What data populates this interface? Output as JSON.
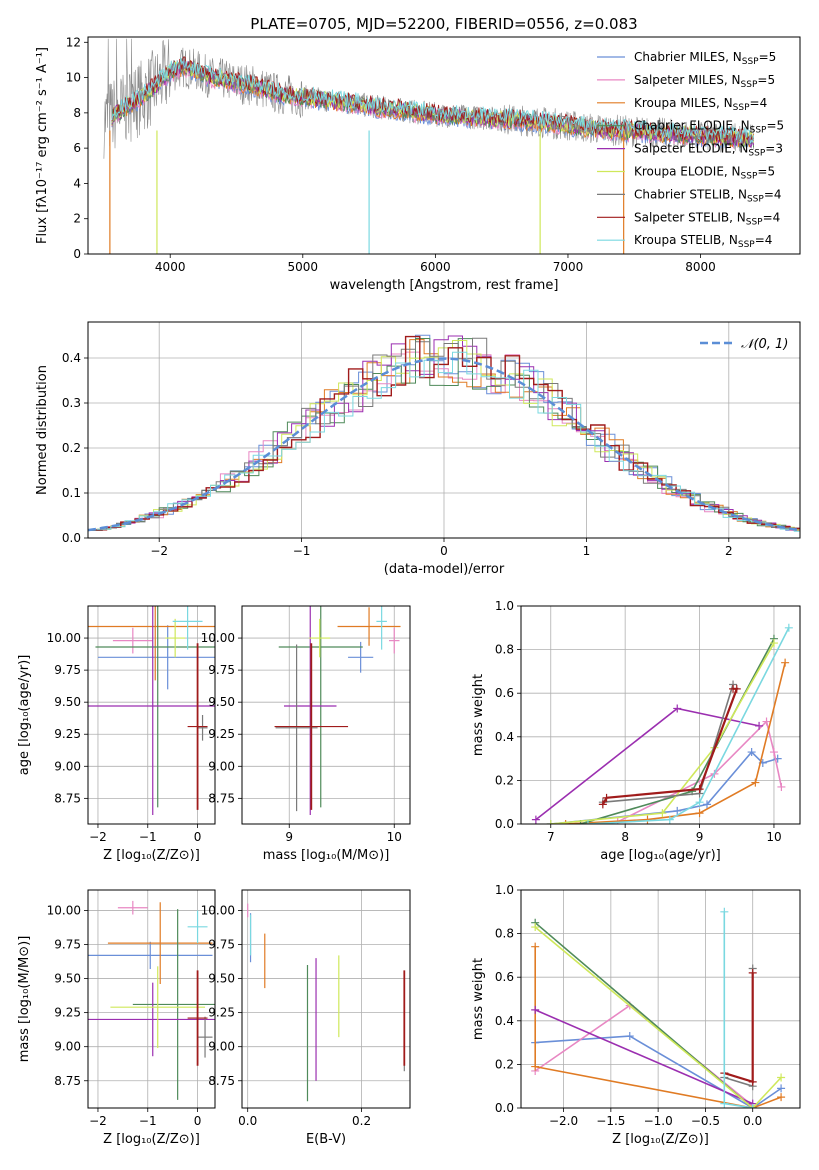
{
  "colors": {
    "chabrier_miles": "#6a8fd8",
    "salpeter_miles": "#e887c3",
    "kroupa_miles": "#e07b24",
    "chabrier_elodie": "#4f8a5a",
    "salpeter_elodie": "#9b2fb0",
    "kroupa_elodie": "#cfe85a",
    "chabrier_stelib": "#7a7a7a",
    "salpeter_stelib": "#a01b1b",
    "kroupa_stelib": "#7ad8e0",
    "gaussian": "#5b8ed6",
    "data": "#8a8a8a"
  },
  "chart_data": [
    {
      "id": "spectrum",
      "type": "line",
      "title": "PLATE=0705, MJD=52200, FIBERID=0556, z=0.083",
      "xlabel": "wavelength [Angstrom, rest frame]",
      "ylabel": "Flux [fλ10⁻¹⁷ erg cm⁻² s⁻¹ A⁻¹]",
      "xlim": [
        3380,
        8750
      ],
      "ylim": [
        0,
        12.3
      ],
      "xticks": [
        4000,
        5000,
        6000,
        7000,
        8000
      ],
      "yticks": [
        0,
        2,
        4,
        6,
        8,
        10,
        12
      ],
      "grid": false,
      "legend_position": "right",
      "continuum_nodes": {
        "x": [
          3500,
          3600,
          3700,
          3800,
          3900,
          4000,
          4100,
          4200,
          4300,
          4400,
          4500,
          4600,
          4700,
          4800,
          4900,
          5000,
          5200,
          5400,
          5600,
          5800,
          6000,
          6200,
          6400,
          6600,
          6800,
          7000,
          7200,
          7400,
          7600,
          7800,
          8000,
          8200,
          8400
        ],
        "y": [
          7.6,
          8.0,
          8.5,
          9.0,
          9.6,
          10.3,
          10.6,
          10.4,
          10.0,
          9.9,
          9.7,
          9.6,
          9.4,
          9.1,
          9.0,
          8.9,
          8.7,
          8.5,
          8.3,
          8.1,
          7.9,
          7.8,
          7.7,
          7.6,
          7.5,
          7.3,
          7.1,
          7.0,
          6.9,
          6.8,
          6.7,
          6.6,
          6.5
        ]
      },
      "legend": [
        {
          "label": "Chabrier MILES, N_SSP=5",
          "base": "Chabrier MILES, N",
          "sub": "SSP",
          "tail": "=5",
          "color_key": "chabrier_miles"
        },
        {
          "label": "Salpeter MILES, N_SSP=5",
          "base": "Salpeter MILES, N",
          "sub": "SSP",
          "tail": "=5",
          "color_key": "salpeter_miles"
        },
        {
          "label": "Kroupa MILES, N_SSP=4",
          "base": "Kroupa MILES, N",
          "sub": "SSP",
          "tail": "=4",
          "color_key": "kroupa_miles"
        },
        {
          "label": "Chabrier ELODIE, N_SSP=5",
          "base": "Chabrier ELODIE, N",
          "sub": "SSP",
          "tail": "=5",
          "color_key": "chabrier_elodie"
        },
        {
          "label": "Salpeter ELODIE, N_SSP=3",
          "base": "Salpeter ELODIE, N",
          "sub": "SSP",
          "tail": "=3",
          "color_key": "salpeter_elodie"
        },
        {
          "label": "Kroupa ELODIE, N_SSP=5",
          "base": "Kroupa ELODIE, N",
          "sub": "SSP",
          "tail": "=5",
          "color_key": "kroupa_elodie"
        },
        {
          "label": "Chabrier STELIB, N_SSP=4",
          "base": "Chabrier STELIB, N",
          "sub": "SSP",
          "tail": "=4",
          "color_key": "chabrier_stelib"
        },
        {
          "label": "Salpeter STELIB, N_SSP=4",
          "base": "Salpeter STELIB, N",
          "sub": "SSP",
          "tail": "=4",
          "color_key": "salpeter_stelib"
        },
        {
          "label": "Kroupa STELIB, N_SSP=4",
          "base": "Kroupa STELIB, N",
          "sub": "SSP",
          "tail": "=4",
          "color_key": "kroupa_stelib"
        }
      ]
    },
    {
      "id": "residuals",
      "type": "histogram",
      "xlabel": "(data-model)/error",
      "ylabel": "Normed distribution",
      "xlim": [
        -2.5,
        2.5
      ],
      "ylim": [
        0,
        0.48
      ],
      "xticks": [
        -2,
        -1,
        0,
        1,
        2
      ],
      "yticks": [
        0.0,
        0.1,
        0.2,
        0.3,
        0.4
      ],
      "grid": true,
      "legend_position": "top-right",
      "gaussian_label": "𝒩(0, 1)",
      "bin_width": 0.1
    },
    {
      "id": "age_vs_Z",
      "type": "errorbar",
      "xlabel": "Z [log₁₀(Z/Z⊙)]",
      "ylabel": "age  [log₁₀(age/yr)]",
      "xlim": [
        -2.2,
        0.35
      ],
      "ylim": [
        8.55,
        10.25
      ],
      "xticks": [
        -2,
        -1,
        0
      ],
      "yticks": [
        8.75,
        9.0,
        9.25,
        9.5,
        9.75,
        10.0
      ],
      "grid": true,
      "points": [
        {
          "color_key": "chabrier_miles",
          "x": -0.6,
          "xerr": 1.4,
          "y": 9.85,
          "yerr": 0.25
        },
        {
          "color_key": "salpeter_miles",
          "x": -1.3,
          "xerr": 0.4,
          "y": 9.98,
          "yerr": 0.1
        },
        {
          "color_key": "kroupa_miles",
          "x": -0.85,
          "xerr": 1.35,
          "y": 10.09,
          "yerr": 0.42
        },
        {
          "color_key": "chabrier_elodie",
          "x": -0.8,
          "xerr": 1.25,
          "y": 9.93,
          "yerr": 1.25
        },
        {
          "color_key": "salpeter_elodie",
          "x": -0.9,
          "xerr": 1.3,
          "y": 9.47,
          "yerr": 0.85
        },
        {
          "color_key": "kroupa_elodie",
          "x": -0.45,
          "xerr": 0.2,
          "y": 10.0,
          "yerr": 0.15
        },
        {
          "color_key": "chabrier_stelib",
          "x": 0.1,
          "xerr": 0.1,
          "y": 9.3,
          "yerr": 0.1
        },
        {
          "color_key": "salpeter_stelib",
          "x": 0.0,
          "xerr": 0.2,
          "y": 9.31,
          "yerr": 0.65
        },
        {
          "color_key": "kroupa_stelib",
          "x": -0.2,
          "xerr": 0.3,
          "y": 10.13,
          "yerr": 0.22
        }
      ]
    },
    {
      "id": "age_vs_mass",
      "type": "errorbar",
      "xlabel": "mass [log₁₀(M/M⊙)]",
      "ylabel": "",
      "xlim": [
        8.55,
        10.15
      ],
      "ylim": [
        8.55,
        10.25
      ],
      "xticks": [
        9,
        10
      ],
      "yticks": [
        8.75,
        9.0,
        9.25,
        9.5,
        9.75,
        10.0
      ],
      "grid": true,
      "points": [
        {
          "color_key": "chabrier_miles",
          "x": 9.68,
          "xerr": 0.12,
          "y": 9.85,
          "yerr": 0.12
        },
        {
          "color_key": "salpeter_miles",
          "x": 10.0,
          "xerr": 0.05,
          "y": 9.98,
          "yerr": 0.1
        },
        {
          "color_key": "kroupa_miles",
          "x": 9.76,
          "xerr": 0.3,
          "y": 10.09,
          "yerr": 0.15
        },
        {
          "color_key": "chabrier_elodie",
          "x": 9.3,
          "xerr": 0.4,
          "y": 9.93,
          "yerr": 1.25
        },
        {
          "color_key": "salpeter_elodie",
          "x": 9.2,
          "xerr": 0.25,
          "y": 9.47,
          "yerr": 0.85
        },
        {
          "color_key": "kroupa_elodie",
          "x": 9.29,
          "xerr": 0.1,
          "y": 10.0,
          "yerr": 0.15
        },
        {
          "color_key": "chabrier_stelib",
          "x": 9.07,
          "xerr": 0.2,
          "y": 9.3,
          "yerr": 0.65
        },
        {
          "color_key": "salpeter_stelib",
          "x": 9.21,
          "xerr": 0.35,
          "y": 9.31,
          "yerr": 0.65
        },
        {
          "color_key": "kroupa_stelib",
          "x": 9.88,
          "xerr": 0.05,
          "y": 10.13,
          "yerr": 0.22
        }
      ]
    },
    {
      "id": "massweight_vs_age",
      "type": "line",
      "xlabel": "age  [log₁₀(age/yr)]",
      "ylabel": "mass weight",
      "xlim": [
        6.6,
        10.35
      ],
      "ylim": [
        0,
        1
      ],
      "xticks": [
        7,
        8,
        9,
        10
      ],
      "yticks": [
        0.0,
        0.2,
        0.4,
        0.6,
        0.8,
        1.0
      ],
      "grid": true,
      "series": [
        {
          "color_key": "chabrier_miles",
          "x": [
            7.0,
            8.7,
            9.1,
            9.7,
            9.85,
            10.05
          ],
          "y": [
            0.0,
            0.06,
            0.09,
            0.33,
            0.28,
            0.3
          ]
        },
        {
          "color_key": "salpeter_miles",
          "x": [
            7.9,
            9.2,
            9.9,
            10.0,
            10.1
          ],
          "y": [
            0.01,
            0.23,
            0.47,
            0.33,
            0.17
          ]
        },
        {
          "color_key": "kroupa_miles",
          "x": [
            7.2,
            8.3,
            9.0,
            9.75,
            10.15
          ],
          "y": [
            0.0,
            0.02,
            0.05,
            0.19,
            0.74
          ]
        },
        {
          "color_key": "chabrier_elodie",
          "x": [
            7.4,
            8.9,
            10.0
          ],
          "y": [
            0.0,
            0.15,
            0.85
          ]
        },
        {
          "color_key": "salpeter_elodie",
          "x": [
            6.8,
            8.7,
            9.8
          ],
          "y": [
            0.02,
            0.53,
            0.45
          ]
        },
        {
          "color_key": "kroupa_elodie",
          "x": [
            7.0,
            8.5,
            9.2,
            10.0
          ],
          "y": [
            0.0,
            0.05,
            0.35,
            0.83
          ]
        },
        {
          "color_key": "chabrier_stelib",
          "x": [
            7.7,
            9.0,
            9.45
          ],
          "y": [
            0.1,
            0.14,
            0.64
          ]
        },
        {
          "color_key": "salpeter_stelib",
          "x": [
            7.7,
            7.75,
            9.0,
            9.5,
            9.45
          ],
          "y": [
            0.09,
            0.12,
            0.16,
            0.62,
            0.62
          ]
        },
        {
          "color_key": "kroupa_stelib",
          "x": [
            7.5,
            8.6,
            9.0,
            10.2
          ],
          "y": [
            0.0,
            0.02,
            0.1,
            0.9
          ]
        }
      ]
    },
    {
      "id": "mass_vs_Z",
      "type": "errorbar",
      "xlabel": "Z [log₁₀(Z/Z⊙)]",
      "ylabel": "mass [log₁₀(M/M⊙)]",
      "xlim": [
        -2.2,
        0.35
      ],
      "ylim": [
        8.55,
        10.15
      ],
      "xticks": [
        -2,
        -1,
        0
      ],
      "yticks": [
        8.75,
        9.0,
        9.25,
        9.5,
        9.75,
        10.0
      ],
      "grid": true,
      "points": [
        {
          "color_key": "chabrier_miles",
          "x": -0.95,
          "xerr": 1.25,
          "y": 9.67,
          "yerr": 0.1
        },
        {
          "color_key": "salpeter_miles",
          "x": -1.3,
          "xerr": 0.3,
          "y": 10.02,
          "yerr": 0.05
        },
        {
          "color_key": "kroupa_miles",
          "x": -0.75,
          "xerr": 1.05,
          "y": 9.76,
          "yerr": 0.3
        },
        {
          "color_key": "chabrier_elodie",
          "x": -0.4,
          "xerr": 0.9,
          "y": 9.31,
          "yerr": 0.7
        },
        {
          "color_key": "salpeter_elodie",
          "x": -0.9,
          "xerr": 1.3,
          "y": 9.2,
          "yerr": 0.27
        },
        {
          "color_key": "kroupa_elodie",
          "x": -0.8,
          "xerr": 0.95,
          "y": 9.29,
          "yerr": 0.3
        },
        {
          "color_key": "chabrier_stelib",
          "x": 0.15,
          "xerr": 0.15,
          "y": 9.07,
          "yerr": 0.15
        },
        {
          "color_key": "salpeter_stelib",
          "x": 0.0,
          "xerr": 0.2,
          "y": 9.21,
          "yerr": 0.35
        },
        {
          "color_key": "kroupa_stelib",
          "x": 0.0,
          "xerr": 0.2,
          "y": 9.88,
          "yerr": 0.12
        }
      ]
    },
    {
      "id": "mass_vs_ebv",
      "type": "errorbar",
      "xlabel": "E(B-V)",
      "ylabel": "",
      "xlim": [
        -0.01,
        0.285
      ],
      "ylim": [
        8.55,
        10.15
      ],
      "xticks": [
        0.0,
        0.2
      ],
      "yticks": [
        8.75,
        9.0,
        9.25,
        9.5,
        9.75,
        10.0
      ],
      "grid": true,
      "points": [
        {
          "color_key": "chabrier_miles",
          "x": 0.005,
          "xerr": 0,
          "y": 9.8,
          "yerr": 0.18
        },
        {
          "color_key": "salpeter_miles",
          "x": 0.0,
          "xerr": 0,
          "y": 10.0,
          "yerr": 0.05
        },
        {
          "color_key": "kroupa_miles",
          "x": 0.03,
          "xerr": 0,
          "y": 9.63,
          "yerr": 0.2
        },
        {
          "color_key": "chabrier_elodie",
          "x": 0.105,
          "xerr": 0,
          "y": 9.1,
          "yerr": 0.5
        },
        {
          "color_key": "salpeter_elodie",
          "x": 0.12,
          "xerr": 0,
          "y": 9.2,
          "yerr": 0.45
        },
        {
          "color_key": "kroupa_elodie",
          "x": 0.16,
          "xerr": 0,
          "y": 9.37,
          "yerr": 0.3
        },
        {
          "color_key": "chabrier_stelib",
          "x": 0.275,
          "xerr": 0,
          "y": 9.07,
          "yerr": 0.25
        },
        {
          "color_key": "salpeter_stelib",
          "x": 0.275,
          "xerr": 0,
          "y": 9.21,
          "yerr": 0.35
        },
        {
          "color_key": "kroupa_stelib",
          "x": 0.005,
          "xerr": 0,
          "y": 9.82,
          "yerr": 0.15
        }
      ]
    },
    {
      "id": "massweight_vs_Z",
      "type": "line",
      "xlabel": "Z [log₁₀(Z/Z⊙)]",
      "ylabel": "mass weight",
      "xlim": [
        -2.45,
        0.5
      ],
      "ylim": [
        0,
        1
      ],
      "xticks": [
        -2.0,
        -1.5,
        -1.0,
        -0.5,
        0.0
      ],
      "yticks": [
        0.0,
        0.2,
        0.4,
        0.6,
        0.8,
        1.0
      ],
      "grid": true,
      "series": [
        {
          "color_key": "chabrier_miles",
          "x": [
            -2.3,
            -1.3,
            0.0,
            0.3
          ],
          "y": [
            0.3,
            0.33,
            0.0,
            0.09
          ]
        },
        {
          "color_key": "salpeter_miles",
          "x": [
            -2.3,
            -1.3,
            0.0
          ],
          "y": [
            0.17,
            0.47,
            0.01
          ]
        },
        {
          "color_key": "kroupa_miles",
          "x": [
            -2.3,
            -2.3,
            0.0,
            0.3
          ],
          "y": [
            0.74,
            0.19,
            0.0,
            0.05
          ]
        },
        {
          "color_key": "chabrier_elodie",
          "x": [
            -2.3,
            0.0
          ],
          "y": [
            0.85,
            0.0
          ]
        },
        {
          "color_key": "salpeter_elodie",
          "x": [
            -2.3,
            0.0
          ],
          "y": [
            0.45,
            0.02
          ]
        },
        {
          "color_key": "kroupa_elodie",
          "x": [
            -2.3,
            0.0,
            0.3
          ],
          "y": [
            0.83,
            0.0,
            0.14
          ]
        },
        {
          "color_key": "chabrier_stelib",
          "x": [
            -0.3,
            0.0,
            0.0
          ],
          "y": [
            0.14,
            0.1,
            0.64
          ]
        },
        {
          "color_key": "salpeter_stelib",
          "x": [
            -0.3,
            0.0,
            0.0
          ],
          "y": [
            0.16,
            0.12,
            0.62
          ]
        },
        {
          "color_key": "kroupa_stelib",
          "x": [
            -0.3,
            -0.3,
            0.0
          ],
          "y": [
            0.9,
            0.02,
            0.0
          ]
        }
      ]
    }
  ]
}
